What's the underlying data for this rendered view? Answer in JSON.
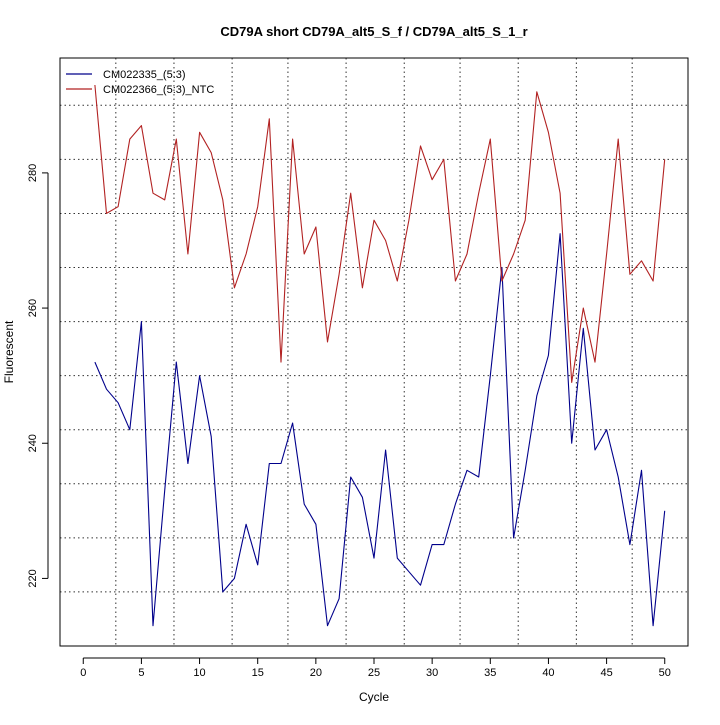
{
  "chart_data": {
    "type": "line",
    "title": "CD79A short CD79A_alt5_S_f / CD79A_alt5_S_1_r",
    "xlabel": "Cycle",
    "ylabel": "Fluorescent",
    "xlim": [
      -2,
      52
    ],
    "ylim": [
      210,
      297
    ],
    "x_ticks": [
      0,
      5,
      10,
      15,
      20,
      25,
      30,
      35,
      40,
      45,
      50
    ],
    "y_ticks": [
      220,
      240,
      260,
      280
    ],
    "grid": {
      "vertical_x": [
        2.8,
        7.8,
        12.8,
        17.6,
        22.6,
        27.6,
        32.4,
        37.4,
        42.4,
        47.2
      ],
      "horizontal_y": [
        218,
        226,
        234,
        242,
        250,
        258,
        266,
        274,
        282,
        290
      ]
    },
    "legend_position": "top-left",
    "series": [
      {
        "name": "CM022335_(5:3)",
        "color": "#00008b",
        "x": [
          1,
          2,
          3,
          4,
          5,
          6,
          7,
          8,
          9,
          10,
          11,
          12,
          13,
          14,
          15,
          16,
          17,
          18,
          19,
          20,
          21,
          22,
          23,
          24,
          25,
          26,
          27,
          28,
          29,
          30,
          31,
          32,
          33,
          34,
          35,
          36,
          37,
          38,
          39,
          40,
          41,
          42,
          43,
          44,
          45,
          46,
          47,
          48,
          49,
          50
        ],
        "values": [
          252,
          248,
          246,
          242,
          258,
          213,
          233,
          252,
          237,
          250,
          241,
          218,
          220,
          228,
          222,
          237,
          237,
          243,
          231,
          228,
          213,
          217,
          235,
          232,
          223,
          239,
          223,
          221,
          219,
          225,
          225,
          231,
          236,
          235,
          250,
          266,
          226,
          236,
          247,
          253,
          271,
          240,
          257,
          239,
          242,
          235,
          225,
          236,
          213,
          230
        ]
      },
      {
        "name": "CM022366_(5:3)_NTC",
        "color": "#b22222",
        "x": [
          1,
          2,
          3,
          4,
          5,
          6,
          7,
          8,
          9,
          10,
          11,
          12,
          13,
          14,
          15,
          16,
          17,
          18,
          19,
          20,
          21,
          22,
          23,
          24,
          25,
          26,
          27,
          28,
          29,
          30,
          31,
          32,
          33,
          34,
          35,
          36,
          37,
          38,
          39,
          40,
          41,
          42,
          43,
          44,
          45,
          46,
          47,
          48,
          49,
          50
        ],
        "values": [
          293,
          274,
          275,
          285,
          287,
          277,
          276,
          285,
          268,
          286,
          283,
          276,
          263,
          268,
          275,
          288,
          252,
          285,
          268,
          272,
          255,
          265,
          277,
          263,
          273,
          270,
          264,
          273,
          284,
          279,
          282,
          264,
          268,
          277,
          285,
          264,
          268,
          273,
          292,
          286,
          277,
          249,
          260,
          252,
          268,
          285,
          265,
          267,
          264,
          282
        ]
      }
    ]
  }
}
